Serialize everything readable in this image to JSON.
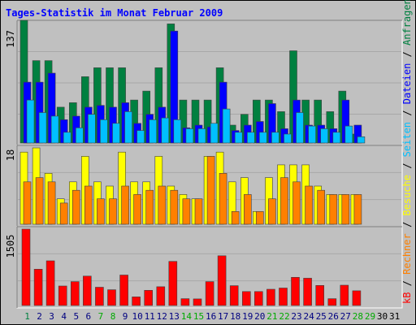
{
  "title": "Tages-Statistik im Monat Februar 2009",
  "right_label": {
    "anfragen": "Anfragen",
    "sep1": " / ",
    "dateien": "Dateien",
    "sep2": " / ",
    "seiten": "Seiten",
    "sep3": " / ",
    "besuche": "Besuche",
    "sep4": " / ",
    "rechner": "Rechner",
    "sep5": " / ",
    "kb": "kB"
  },
  "colors": {
    "background": "#c0c0c0",
    "anfragen": "#008040",
    "dateien": "#0000ff",
    "seiten": "#00c0ff",
    "besuche": "#ffff00",
    "rechner": "#ff8000",
    "kb": "#ff0000",
    "title": "#0000ff",
    "weekday": "#008040",
    "weekend": "#00aa00"
  },
  "chart_data": [
    {
      "type": "bar",
      "panel": "top",
      "ymax_label": "137",
      "ylim": [
        0,
        137
      ],
      "categories": [
        "1",
        "2",
        "3",
        "4",
        "5",
        "6",
        "7",
        "8",
        "9",
        "10",
        "11",
        "12",
        "13",
        "14",
        "15",
        "16",
        "17",
        "18",
        "19",
        "20",
        "21",
        "22",
        "23",
        "24",
        "25",
        "26",
        "27",
        "28",
        "29",
        "30",
        "31"
      ],
      "series": [
        {
          "name": "Anfragen",
          "values": [
            137,
            92,
            92,
            40,
            45,
            74,
            84,
            84,
            84,
            48,
            58,
            84,
            133,
            48,
            48,
            48,
            84,
            20,
            32,
            48,
            48,
            35,
            103,
            48,
            48,
            35,
            58,
            10,
            null,
            null,
            null
          ]
        },
        {
          "name": "Dateien",
          "values": [
            68,
            68,
            78,
            26,
            30,
            40,
            42,
            40,
            45,
            22,
            32,
            40,
            125,
            17,
            20,
            18,
            68,
            14,
            20,
            24,
            44,
            16,
            48,
            20,
            20,
            16,
            48,
            20,
            null,
            null,
            null
          ]
        },
        {
          "name": "Seiten",
          "values": [
            48,
            34,
            30,
            12,
            17,
            32,
            26,
            22,
            35,
            14,
            26,
            28,
            26,
            16,
            16,
            22,
            38,
            12,
            12,
            12,
            12,
            10,
            34,
            19,
            16,
            12,
            19,
            7,
            null,
            null,
            null
          ]
        }
      ]
    },
    {
      "type": "bar",
      "panel": "middle",
      "ymax_label": "18",
      "ylim": [
        0,
        18
      ],
      "categories": [
        "1",
        "2",
        "3",
        "4",
        "5",
        "6",
        "7",
        "8",
        "9",
        "10",
        "11",
        "12",
        "13",
        "14",
        "15",
        "16",
        "17",
        "18",
        "19",
        "20",
        "21",
        "22",
        "23",
        "24",
        "25",
        "26",
        "27",
        "28",
        "29",
        "30",
        "31"
      ],
      "series": [
        {
          "name": "Besuche",
          "values": [
            17,
            18,
            12,
            6,
            10,
            16,
            10,
            9,
            17,
            10,
            10,
            16,
            9,
            7,
            6,
            16,
            17,
            10,
            11,
            3,
            11,
            14,
            14,
            14,
            9,
            7,
            7,
            7,
            null,
            null,
            null
          ]
        },
        {
          "name": "Rechner",
          "values": [
            10,
            11,
            10,
            5,
            8,
            9,
            6,
            6,
            9,
            7,
            8,
            9,
            8,
            6,
            6,
            16,
            12,
            3,
            7,
            3,
            6,
            11,
            10,
            9,
            8,
            7,
            7,
            7,
            null,
            null,
            null
          ]
        }
      ]
    },
    {
      "type": "bar",
      "panel": "bottom",
      "ymax_label": "1505",
      "ylim": [
        0,
        1505
      ],
      "categories": [
        "1",
        "2",
        "3",
        "4",
        "5",
        "6",
        "7",
        "8",
        "9",
        "10",
        "11",
        "12",
        "13",
        "14",
        "15",
        "16",
        "17",
        "18",
        "19",
        "20",
        "21",
        "22",
        "23",
        "24",
        "25",
        "26",
        "27",
        "28",
        "29",
        "30",
        "31"
      ],
      "series": [
        {
          "name": "kB",
          "values": [
            1505,
            715,
            880,
            385,
            470,
            580,
            360,
            310,
            600,
            170,
            300,
            370,
            870,
            135,
            130,
            470,
            980,
            390,
            275,
            275,
            320,
            345,
            556,
            538,
            395,
            135,
            400,
            290,
            null,
            null,
            null
          ]
        }
      ]
    }
  ],
  "day_types": [
    "w",
    "w",
    "w",
    "w",
    "w",
    "w",
    "e",
    "e",
    "w",
    "w",
    "w",
    "w",
    "w",
    "e",
    "e",
    "w",
    "w",
    "w",
    "w",
    "w",
    "e",
    "e",
    "w",
    "w",
    "w",
    "w",
    "w",
    "e",
    "e",
    "w",
    "w"
  ]
}
